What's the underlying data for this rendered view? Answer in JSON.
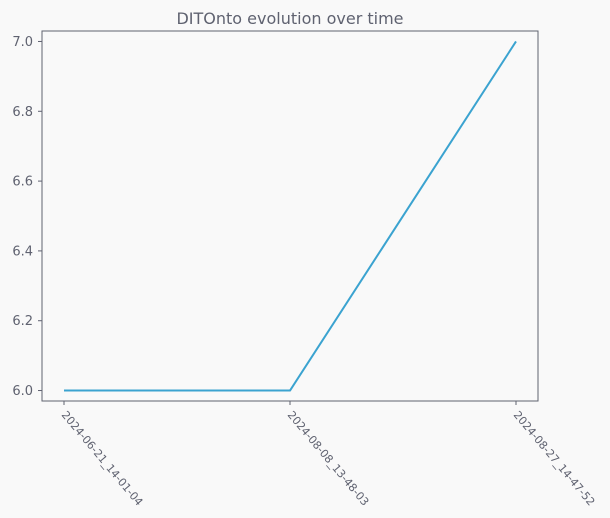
{
  "chart_data": {
    "type": "line",
    "title": "DITOnto evolution over time",
    "xlabel": "",
    "ylabel": "",
    "categories": [
      "2024-06-21_14-01-04",
      "2024-08-08_13-48-03",
      "2024-08-27_14-47-52"
    ],
    "series": [
      {
        "values": [
          6.0,
          6.0,
          7.0
        ],
        "color": "#3ba3d0"
      }
    ],
    "ylim": [
      5.97,
      7.03
    ],
    "yticks": [
      6.0,
      6.2,
      6.4,
      6.6,
      6.8,
      7.0
    ],
    "ytick_labels": [
      "6.0",
      "6.2",
      "6.4",
      "6.6",
      "6.8",
      "7.0"
    ],
    "grid": false,
    "colors": {
      "background": "#f9f9f9",
      "axes": "#5f6270",
      "text": "#5f6270",
      "line": "#3ba3d0"
    }
  }
}
